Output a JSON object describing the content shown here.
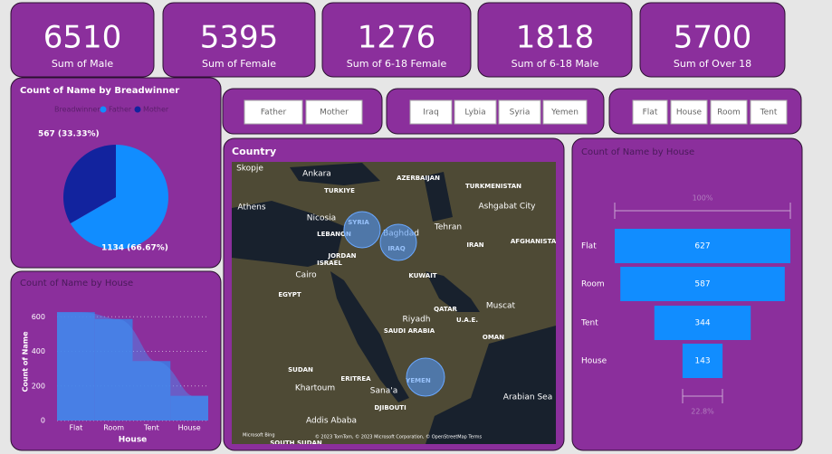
{
  "cards": [
    {
      "value": 6510,
      "label": "Sum of Male"
    },
    {
      "value": 5395,
      "label": "Sum of Female"
    },
    {
      "value": 1276,
      "label": "Sum of 6-18 Female"
    },
    {
      "value": 1818,
      "label": "Sum of 6-18 Male"
    },
    {
      "value": 5700,
      "label": "Sum of Over 18"
    }
  ],
  "slicers": [
    {
      "items": [
        "Father",
        "Mother"
      ]
    },
    {
      "items": [
        "Iraq",
        "Lybia",
        "Syria",
        "Yemen"
      ]
    },
    {
      "items": [
        "Flat",
        "House",
        "Room",
        "Tent"
      ]
    }
  ],
  "map": {
    "title": "Country",
    "places": [
      "Skopje",
      "Ankara",
      "TURKIYE",
      "AZERBAIJAN",
      "TURKMENISTAN",
      "Athens",
      "Nicosia",
      "Ashgabat City",
      "Baghdad",
      "Tehran",
      "SYRIA",
      "LEBANON",
      "IRAQ",
      "IRAN",
      "AFGHANISTAN",
      "JORDAN",
      "ISRAEL",
      "Cairo",
      "KUWAIT",
      "EGYPT",
      "QATAR",
      "Muscat",
      "Riyadh",
      "U.A.E.",
      "SAUDI ARABIA",
      "OMAN",
      "SUDAN",
      "ERITREA",
      "Khartoum",
      "Sana'a",
      "YEMEN",
      "DJIBOUTI",
      "Arabian Sea",
      "Addis Ababa",
      "SOUTH SUDAN"
    ],
    "logo": "Microsoft Bing",
    "attribution": "© 2023 TomTom, © 2023 Microsoft Corporation, © OpenStreetMap  Terms"
  },
  "chart_data": [
    {
      "type": "pie",
      "title": "Count of Name by Breadwinner",
      "legend_title": "Breadwinner",
      "categories": [
        "Father",
        "Mother"
      ],
      "values": [
        1134,
        567
      ],
      "value_labels": [
        "1134 (66.67%)",
        "567 (33.33%)"
      ],
      "colors": [
        "#118dff",
        "#12239e"
      ]
    },
    {
      "type": "bar",
      "title": "Count of Name by House",
      "xlabel": "House",
      "ylabel": "Count of Name",
      "categories": [
        "Flat",
        "Room",
        "Tent",
        "House"
      ],
      "values": [
        627,
        587,
        344,
        143
      ],
      "color": "#3a7ee6",
      "ylim": [
        0,
        680
      ],
      "yticks": [
        0,
        200,
        400,
        600
      ],
      "grid": true
    },
    {
      "type": "funnel",
      "title": "Count of Name by House",
      "categories": [
        "Flat",
        "Room",
        "Tent",
        "House"
      ],
      "values": [
        627,
        587,
        344,
        143
      ],
      "color": "#118dff",
      "top_label": "100%",
      "bottom_label": "22.8%"
    }
  ]
}
